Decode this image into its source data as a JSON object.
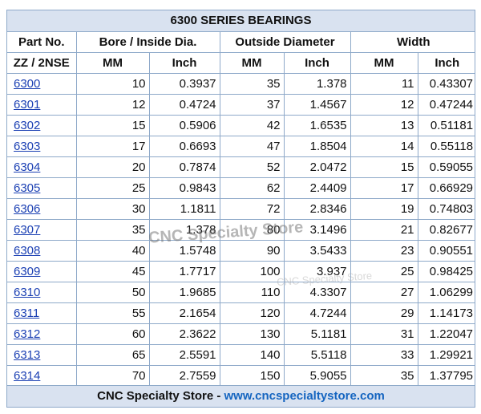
{
  "title": "6300 SERIES BEARINGS",
  "headers": {
    "part_no": "Part No.",
    "bore": "Bore / Inside Dia.",
    "outside": "Outside Diameter",
    "width": "Width",
    "suffix": "ZZ / 2NSE",
    "mm": "MM",
    "inch": "Inch"
  },
  "rows": [
    {
      "part": "6300",
      "bore_mm": "10",
      "bore_in": "0.3937",
      "od_mm": "35",
      "od_in": "1.378",
      "w_mm": "11",
      "w_in": "0.43307"
    },
    {
      "part": "6301",
      "bore_mm": "12",
      "bore_in": "0.4724",
      "od_mm": "37",
      "od_in": "1.4567",
      "w_mm": "12",
      "w_in": "0.47244"
    },
    {
      "part": "6302",
      "bore_mm": "15",
      "bore_in": "0.5906",
      "od_mm": "42",
      "od_in": "1.6535",
      "w_mm": "13",
      "w_in": "0.51181"
    },
    {
      "part": "6303",
      "bore_mm": "17",
      "bore_in": "0.6693",
      "od_mm": "47",
      "od_in": "1.8504",
      "w_mm": "14",
      "w_in": "0.55118"
    },
    {
      "part": "6304",
      "bore_mm": "20",
      "bore_in": "0.7874",
      "od_mm": "52",
      "od_in": "2.0472",
      "w_mm": "15",
      "w_in": "0.59055"
    },
    {
      "part": "6305",
      "bore_mm": "25",
      "bore_in": "0.9843",
      "od_mm": "62",
      "od_in": "2.4409",
      "w_mm": "17",
      "w_in": "0.66929"
    },
    {
      "part": "6306",
      "bore_mm": "30",
      "bore_in": "1.1811",
      "od_mm": "72",
      "od_in": "2.8346",
      "w_mm": "19",
      "w_in": "0.74803"
    },
    {
      "part": "6307",
      "bore_mm": "35",
      "bore_in": "1.378",
      "od_mm": "80",
      "od_in": "3.1496",
      "w_mm": "21",
      "w_in": "0.82677"
    },
    {
      "part": "6308",
      "bore_mm": "40",
      "bore_in": "1.5748",
      "od_mm": "90",
      "od_in": "3.5433",
      "w_mm": "23",
      "w_in": "0.90551"
    },
    {
      "part": "6309",
      "bore_mm": "45",
      "bore_in": "1.7717",
      "od_mm": "100",
      "od_in": "3.937",
      "w_mm": "25",
      "w_in": "0.98425"
    },
    {
      "part": "6310",
      "bore_mm": "50",
      "bore_in": "1.9685",
      "od_mm": "110",
      "od_in": "4.3307",
      "w_mm": "27",
      "w_in": "1.06299"
    },
    {
      "part": "6311",
      "bore_mm": "55",
      "bore_in": "2.1654",
      "od_mm": "120",
      "od_in": "4.7244",
      "w_mm": "29",
      "w_in": "1.14173"
    },
    {
      "part": "6312",
      "bore_mm": "60",
      "bore_in": "2.3622",
      "od_mm": "130",
      "od_in": "5.1181",
      "w_mm": "31",
      "w_in": "1.22047"
    },
    {
      "part": "6313",
      "bore_mm": "65",
      "bore_in": "2.5591",
      "od_mm": "140",
      "od_in": "5.5118",
      "w_mm": "33",
      "w_in": "1.29921"
    },
    {
      "part": "6314",
      "bore_mm": "70",
      "bore_in": "2.7559",
      "od_mm": "150",
      "od_in": "5.9055",
      "w_mm": "35",
      "w_in": "1.37795"
    }
  ],
  "footer": {
    "store": "CNC Specialty Store - ",
    "url": "www.cncspecialtystore.com"
  },
  "watermark": {
    "main": "CNC Specialty Store",
    "faint": "CNC Specialty Store"
  },
  "colors": {
    "header_bg": "#d9e2f0",
    "border": "#8ea9c9",
    "link": "#1a3fb3",
    "url": "#1565c0"
  }
}
